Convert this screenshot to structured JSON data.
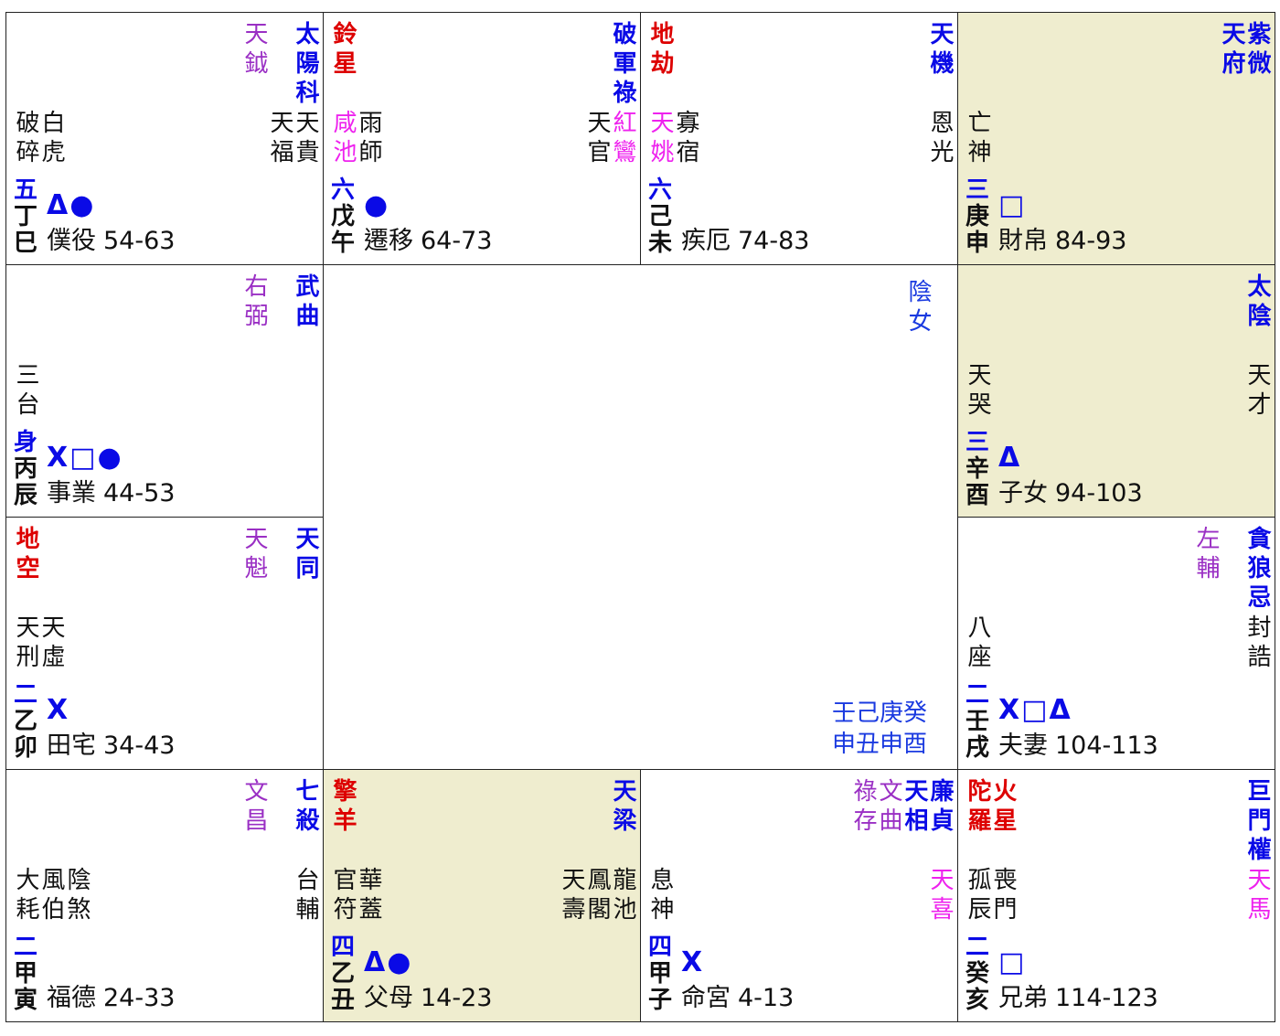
{
  "cells": [
    {
      "number": "五",
      "stem": "丁",
      "branch": "巳",
      "marks": "Δ●",
      "palace": "僕役",
      "ages": "54-63",
      "major": [
        {
          "text": "太陽科",
          "kind": "major"
        }
      ],
      "minor": [
        {
          "text": "天鉞",
          "kind": "minor"
        }
      ],
      "mid_left": [
        {
          "text": "破碎",
          "kind": "plain"
        },
        {
          "text": "白虎",
          "kind": "plain"
        }
      ],
      "mid_right": [
        {
          "text": "天貴",
          "kind": "plain"
        },
        {
          "text": "天福",
          "kind": "plain"
        }
      ]
    },
    {
      "number": "六",
      "stem": "戊",
      "branch": "午",
      "marks": "●",
      "palace": "遷移",
      "ages": "64-73",
      "major": [
        {
          "text": "破軍祿",
          "kind": "major"
        }
      ],
      "top_left": [
        {
          "text": "鈴星",
          "kind": "bad"
        }
      ],
      "mid_left": [
        {
          "text": "咸池",
          "kind": "pink"
        },
        {
          "text": "雨師",
          "kind": "plain"
        }
      ],
      "mid_right": [
        {
          "text": "紅鸞",
          "kind": "pink"
        },
        {
          "text": "天官",
          "kind": "plain"
        }
      ]
    },
    {
      "number": "六",
      "stem": "己",
      "branch": "未",
      "palace": "疾厄",
      "ages": "74-83",
      "major": [
        {
          "text": "天機",
          "kind": "major"
        }
      ],
      "top_left": [
        {
          "text": "地劫",
          "kind": "bad"
        }
      ],
      "mid_left": [
        {
          "text": "天姚",
          "kind": "pink"
        },
        {
          "text": "寡宿",
          "kind": "plain"
        }
      ],
      "mid_right": [
        {
          "text": "恩光",
          "kind": "plain"
        }
      ]
    },
    {
      "number": "三",
      "stem": "庚",
      "branch": "申",
      "marks": "□",
      "palace": "財帛",
      "ages": "84-93",
      "highlight": true,
      "major": [
        {
          "text": "紫微",
          "kind": "major"
        },
        {
          "text": "天府",
          "kind": "major"
        }
      ],
      "mid_left": [
        {
          "text": "亡神",
          "kind": "plain"
        }
      ]
    },
    {
      "number": "三",
      "stem": "辛",
      "branch": "酉",
      "marks": "Δ",
      "palace": "子女",
      "ages": "94-103",
      "highlight": true,
      "major": [
        {
          "text": "太陰",
          "kind": "major"
        }
      ],
      "mid_left": [
        {
          "text": "天哭",
          "kind": "plain"
        }
      ],
      "mid_right": [
        {
          "text": "天才",
          "kind": "plain"
        }
      ]
    },
    {
      "number": "二",
      "stem": "壬",
      "branch": "戌",
      "marks": "X□Δ",
      "palace": "夫妻",
      "ages": "104-113",
      "major": [
        {
          "text": "貪狼忌",
          "kind": "major"
        }
      ],
      "minor": [
        {
          "text": "左輔",
          "kind": "minor"
        }
      ],
      "mid_left": [
        {
          "text": "八座",
          "kind": "plain"
        }
      ],
      "mid_right": [
        {
          "text": "封誥",
          "kind": "plain"
        }
      ]
    },
    {
      "number": "二",
      "stem": "癸",
      "branch": "亥",
      "marks": "□",
      "palace": "兄弟",
      "ages": "114-123",
      "major": [
        {
          "text": "巨門權",
          "kind": "major"
        }
      ],
      "top_left": [
        {
          "text": "陀羅",
          "kind": "bad"
        },
        {
          "text": "火星",
          "kind": "bad"
        }
      ],
      "mid_left": [
        {
          "text": "孤辰",
          "kind": "plain"
        },
        {
          "text": "喪門",
          "kind": "plain"
        }
      ],
      "mid_right": [
        {
          "text": "天馬",
          "kind": "pink"
        }
      ]
    },
    {
      "number": "四",
      "stem": "甲",
      "branch": "子",
      "marks": "X",
      "palace": "命宮",
      "ages": "4-13",
      "major": [
        {
          "text": "廉貞",
          "kind": "major"
        },
        {
          "text": "天相",
          "kind": "major"
        }
      ],
      "minor": [
        {
          "text": "文曲",
          "kind": "minor"
        },
        {
          "text": "祿存",
          "kind": "minor"
        }
      ],
      "mid_left": [
        {
          "text": "息神",
          "kind": "plain"
        }
      ],
      "mid_right": [
        {
          "text": "天喜",
          "kind": "pink"
        }
      ]
    },
    {
      "number": "四",
      "stem": "乙",
      "branch": "丑",
      "marks": "Δ●",
      "palace": "父母",
      "ages": "14-23",
      "highlight": true,
      "major": [
        {
          "text": "天梁",
          "kind": "major"
        }
      ],
      "top_left": [
        {
          "text": "擎羊",
          "kind": "bad"
        }
      ],
      "mid_left": [
        {
          "text": "官符",
          "kind": "plain"
        },
        {
          "text": "華蓋",
          "kind": "plain"
        }
      ],
      "mid_right": [
        {
          "text": "龍池",
          "kind": "plain"
        },
        {
          "text": "鳳閣",
          "kind": "plain"
        },
        {
          "text": "天壽",
          "kind": "plain"
        }
      ]
    },
    {
      "number": "二",
      "stem": "甲",
      "branch": "寅",
      "palace": "福德",
      "ages": "24-33",
      "major": [
        {
          "text": "七殺",
          "kind": "major"
        }
      ],
      "minor": [
        {
          "text": "文昌",
          "kind": "minor"
        }
      ],
      "mid_left": [
        {
          "text": "大耗",
          "kind": "plain"
        },
        {
          "text": "風伯",
          "kind": "plain"
        },
        {
          "text": "陰煞",
          "kind": "plain"
        }
      ],
      "mid_right": [
        {
          "text": "台輔",
          "kind": "plain"
        }
      ]
    },
    {
      "number": "二",
      "stem": "乙",
      "branch": "卯",
      "marks": "X",
      "palace": "田宅",
      "ages": "34-43",
      "major": [
        {
          "text": "天同",
          "kind": "major"
        }
      ],
      "minor": [
        {
          "text": "天魁",
          "kind": "minor"
        }
      ],
      "top_left": [
        {
          "text": "地空",
          "kind": "bad"
        }
      ],
      "mid_left": [
        {
          "text": "天刑",
          "kind": "plain"
        },
        {
          "text": "天虛",
          "kind": "plain"
        }
      ]
    },
    {
      "number": "身",
      "stem": "丙",
      "branch": "辰",
      "marks": "X□●",
      "palace": "事業",
      "ages": "44-53",
      "major": [
        {
          "text": "武曲",
          "kind": "major"
        }
      ],
      "minor": [
        {
          "text": "右弼",
          "kind": "minor"
        }
      ],
      "mid_left": [
        {
          "text": "三台",
          "kind": "plain"
        }
      ]
    }
  ],
  "center": {
    "gender": "陰女",
    "stems": "壬己庚癸",
    "branches": "申丑申酉"
  }
}
